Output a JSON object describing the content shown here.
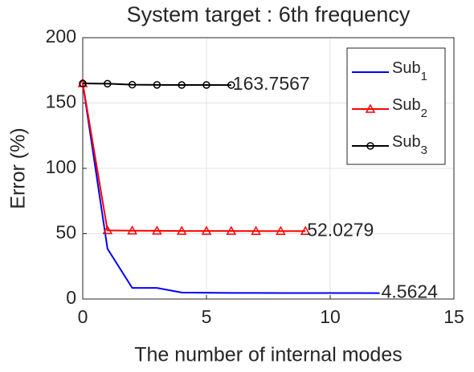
{
  "chart_data": {
    "type": "line",
    "title": "System target : 6th frequency",
    "x_label": "The number of internal modes",
    "y_label": "Error (%)",
    "xlim": [
      0,
      15
    ],
    "xticks": [
      0,
      5,
      10,
      15
    ],
    "ylim": [
      0,
      200
    ],
    "yticks": [
      0,
      50,
      100,
      150,
      200
    ],
    "grid": true,
    "legend": "top-right",
    "series": [
      {
        "name": "Sub1",
        "color": "#0000ff",
        "marker": "none",
        "x": [
          0,
          1,
          2,
          3,
          4,
          5,
          6,
          7,
          8,
          9,
          10,
          11,
          12
        ],
        "values": [
          165,
          38.5,
          8.5,
          8.5,
          5,
          4.8,
          4.7,
          4.65,
          4.6,
          4.6,
          4.58,
          4.57,
          4.5624
        ]
      },
      {
        "name": "Sub2",
        "color": "#ff0000",
        "marker": "triangle",
        "x": [
          0,
          1,
          2,
          3,
          4,
          5,
          6,
          7,
          8,
          9
        ],
        "values": [
          165,
          52.5,
          52.3,
          52.2,
          52.1,
          52.1,
          52.05,
          52.03,
          52.03,
          52.0279
        ]
      },
      {
        "name": "Sub3",
        "color": "#000000",
        "marker": "circle",
        "x": [
          0,
          1,
          2,
          3,
          4,
          5,
          6
        ],
        "values": [
          165,
          164.8,
          164,
          163.9,
          163.8,
          163.8,
          163.7567
        ]
      }
    ]
  }
}
